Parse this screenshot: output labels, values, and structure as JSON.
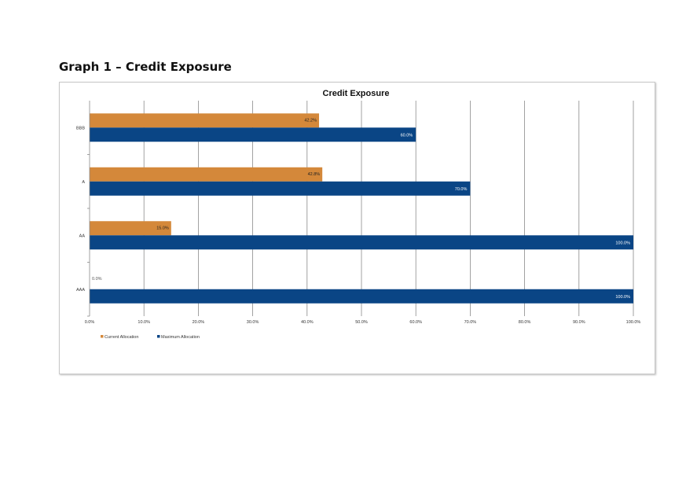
{
  "page": {
    "heading": "Graph 1 – Credit Exposure"
  },
  "chart_data": {
    "type": "bar",
    "orientation": "horizontal",
    "title": "Credit Exposure",
    "categories": [
      "BBB",
      "A",
      "AA",
      "AAA"
    ],
    "series": [
      {
        "name": "Current Allocation",
        "color": "#d4883a",
        "values": [
          42.2,
          42.8,
          15.0,
          0.0
        ],
        "labels": [
          "42.2%",
          "42.8%",
          "15.0%",
          "0.0%"
        ]
      },
      {
        "name": "Maximum Allocation",
        "color": "#0a4585",
        "values": [
          60.0,
          70.0,
          100.0,
          100.0
        ],
        "labels": [
          "60.0%",
          "70.0%",
          "100.0%",
          "100.0%"
        ]
      }
    ],
    "xlim": [
      0,
      100
    ],
    "x_ticks": [
      0,
      10,
      20,
      30,
      40,
      50,
      60,
      70,
      80,
      90,
      100
    ],
    "x_tick_labels": [
      "0.0%",
      "10.0%",
      "20.0%",
      "30.0%",
      "40.0%",
      "50.0%",
      "60.0%",
      "70.0%",
      "80.0%",
      "90.0%",
      "100.0%"
    ],
    "grid": true,
    "legend": "bottom-left"
  }
}
